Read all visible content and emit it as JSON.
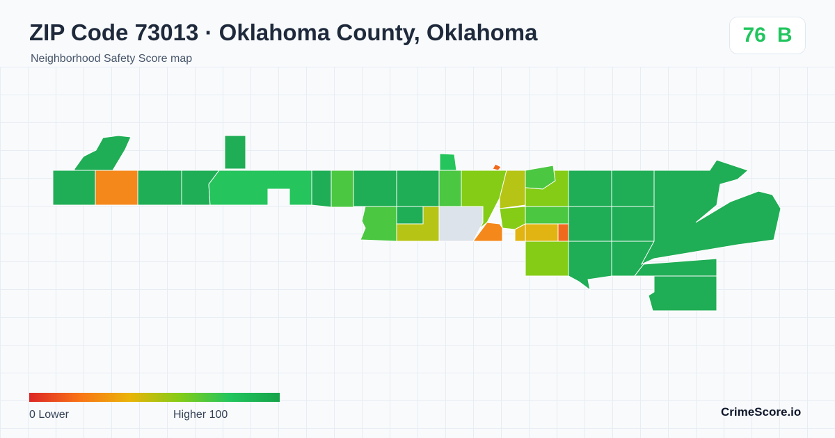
{
  "header": {
    "title": "ZIP Code 73013 · Oklahoma County, Oklahoma",
    "subtitle": "Neighborhood Safety Score map"
  },
  "score": {
    "value": "76",
    "grade": "B",
    "color": "#22c55e"
  },
  "legend": {
    "min_label": "0  Lower",
    "max_label": "Higher  100",
    "colors": [
      "#dc2626",
      "#f97316",
      "#eab308",
      "#84cc16",
      "#22c55e",
      "#16a34a"
    ]
  },
  "brand": "CrimeScore.io",
  "map": {
    "palette": {
      "dark_green": "#1fad55",
      "green": "#25c45c",
      "mid_green": "#4cc742",
      "lime": "#84cc16",
      "olive": "#b6c415",
      "amber": "#e1b414",
      "orange": "#f4881b",
      "red_orange": "#f06a1e",
      "no_data": "#dde3ea"
    }
  }
}
